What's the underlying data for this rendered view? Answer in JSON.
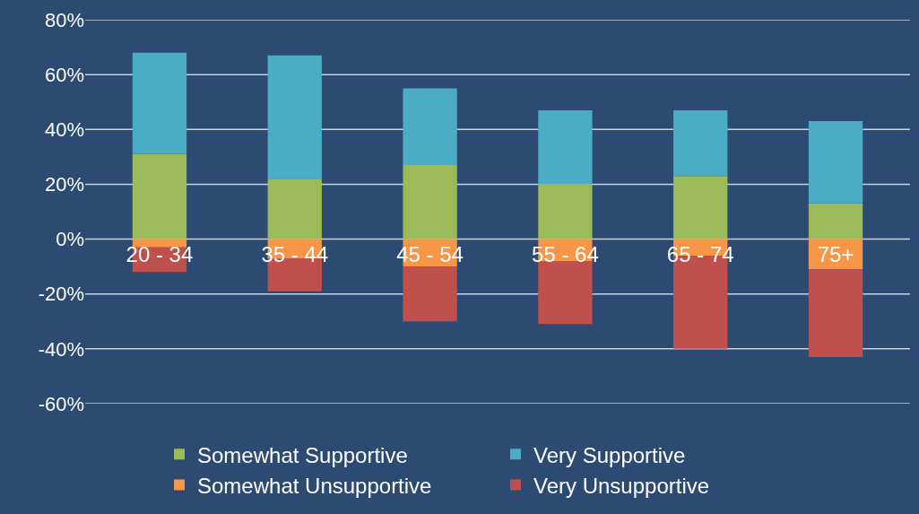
{
  "chart_data": {
    "type": "bar",
    "stacked": true,
    "categories": [
      "20 - 34",
      "35 - 44",
      "45 - 54",
      "55 - 64",
      "65 - 74",
      "75+"
    ],
    "series": [
      {
        "name": "Somewhat Supportive",
        "color": "#9bbb59",
        "values": [
          31,
          22,
          27,
          20,
          23,
          13
        ]
      },
      {
        "name": "Very Supportive",
        "color": "#4bacc6",
        "values": [
          37,
          45,
          28,
          27,
          24,
          30
        ]
      },
      {
        "name": "Somewhat Unsupportive",
        "color": "#f79646",
        "values": [
          -3,
          -7,
          -10,
          -8,
          -6,
          -11
        ]
      },
      {
        "name": "Very Unsupportive",
        "color": "#c0504d",
        "values": [
          -9,
          -12,
          -20,
          -23,
          -34,
          -32
        ]
      }
    ],
    "ylim": [
      -60,
      80
    ],
    "yticks": [
      {
        "value": -60,
        "label": "-60%"
      },
      {
        "value": -40,
        "label": "-40%"
      },
      {
        "value": -20,
        "label": "-20%"
      },
      {
        "value": 0,
        "label": "0%"
      },
      {
        "value": 20,
        "label": "20%"
      },
      {
        "value": 40,
        "label": "40%"
      },
      {
        "value": 60,
        "label": "60%"
      },
      {
        "value": 80,
        "label": "80%"
      }
    ],
    "grid": "y",
    "legend": "bottom"
  }
}
